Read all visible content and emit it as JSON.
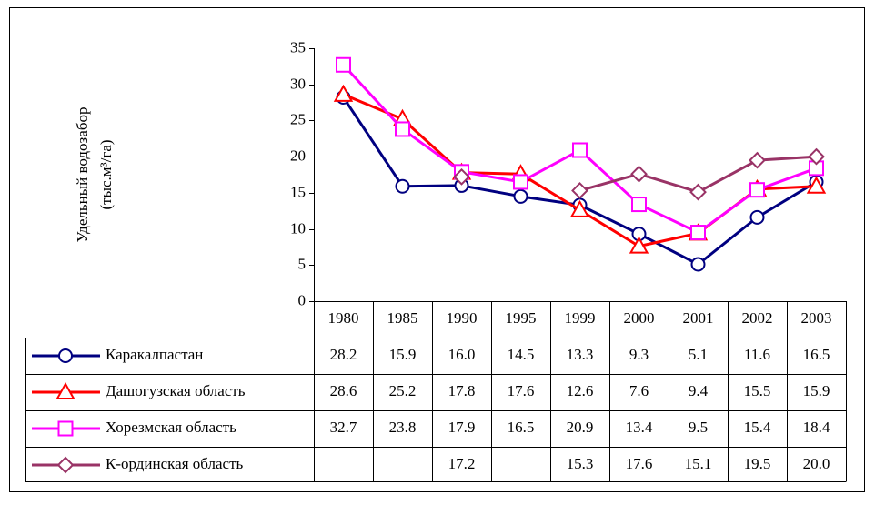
{
  "chart_data": {
    "type": "line",
    "ylabel": [
      "Удельный водозабор",
      "(тыс.м³/га)"
    ],
    "categories": [
      "1980",
      "1985",
      "1990",
      "1995",
      "1999",
      "2000",
      "2001",
      "2002",
      "2003"
    ],
    "ylim": [
      0,
      35
    ],
    "yticks": [
      0,
      5,
      10,
      15,
      20,
      25,
      30,
      35
    ],
    "data_table": true,
    "series": [
      {
        "name": "Каракалпастан",
        "color": "#000080",
        "marker": "circle",
        "values": [
          28.2,
          15.9,
          16.0,
          14.5,
          13.3,
          9.3,
          5.1,
          11.6,
          16.5
        ],
        "value_labels": [
          "28.2",
          "15.9",
          "16.0",
          "14.5",
          "13.3",
          "9.3",
          "5.1",
          "11.6",
          "16.5"
        ]
      },
      {
        "name": "Дашогузская область",
        "color": "#ff0000",
        "marker": "triangle",
        "values": [
          28.6,
          25.2,
          17.8,
          17.6,
          12.6,
          7.6,
          9.4,
          15.5,
          15.9
        ],
        "value_labels": [
          "28.6",
          "25.2",
          "17.8",
          "17.6",
          "12.6",
          "7.6",
          "9.4",
          "15.5",
          "15.9"
        ]
      },
      {
        "name": "Хорезмская область",
        "color": "#ff00ff",
        "marker": "square",
        "values": [
          32.7,
          23.8,
          17.9,
          16.5,
          20.9,
          13.4,
          9.5,
          15.4,
          18.4
        ],
        "value_labels": [
          "32.7",
          "23.8",
          "17.9",
          "16.5",
          "20.9",
          "13.4",
          "9.5",
          "15.4",
          "18.4"
        ]
      },
      {
        "name": "К-ординская область",
        "color": "#993366",
        "marker": "diamond",
        "values": [
          null,
          null,
          17.2,
          null,
          15.3,
          17.6,
          15.1,
          19.5,
          20.0
        ],
        "value_labels": [
          null,
          null,
          "17.2",
          null,
          "15.3",
          "17.6",
          "15.1",
          "19.5",
          "20.0"
        ]
      }
    ]
  }
}
